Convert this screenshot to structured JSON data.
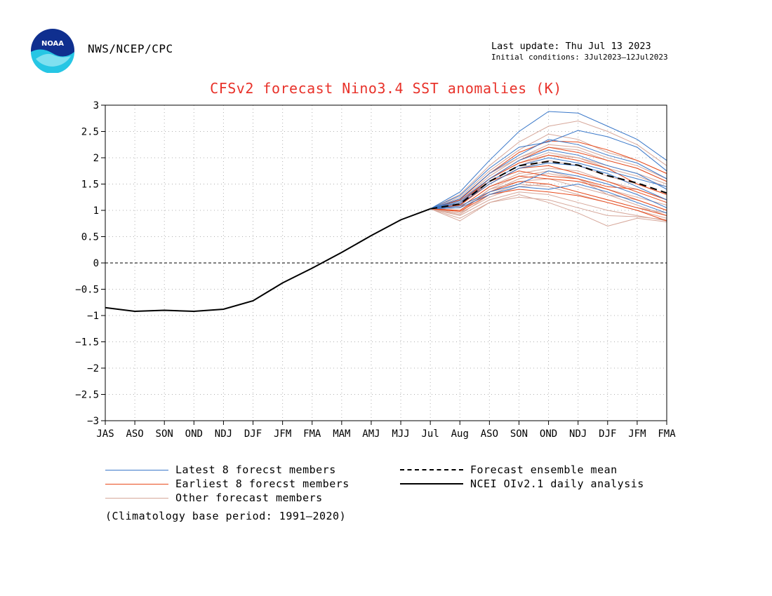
{
  "header": {
    "agency": "NWS/NCEP/CPC",
    "last_update": "Last update: Thu Jul 13 2023",
    "initial_conditions": "Initial conditions: 3Jul2023–12Jul2023",
    "logo_text": "NOAA"
  },
  "colors": {
    "title": "#e8322a",
    "latest": "#3a78c9",
    "earliest": "#e84a1c",
    "other": "#d6a79a",
    "observed": "#000000",
    "mean": "#000000"
  },
  "legend": {
    "latest": "Latest 8 forecst members",
    "earliest": "Earliest 8 forecst members",
    "other": "Other forecast members",
    "mean": "Forecast ensemble mean",
    "observed": "NCEI OIv2.1 daily analysis",
    "climatology": "(Climatology base period: 1991–2020)"
  },
  "chart_data": {
    "type": "line",
    "title": "CFSv2 forecast Nino3.4 SST anomalies (K)",
    "xlabel": "",
    "ylabel": "",
    "categories": [
      "JAS",
      "ASO",
      "SON",
      "OND",
      "NDJ",
      "DJF",
      "JFM",
      "FMA",
      "MAM",
      "AMJ",
      "MJJ",
      "Jul",
      "Aug",
      "ASO",
      "SON",
      "OND",
      "NDJ",
      "DJF",
      "JFM",
      "FMA"
    ],
    "ylim": [
      -3,
      3
    ],
    "yticks": [
      3,
      2.5,
      2,
      1.5,
      1,
      0.5,
      0,
      -0.5,
      -1,
      -1.5,
      -2,
      -2.5,
      -3
    ],
    "grid": true,
    "zero_line": true,
    "observed": {
      "name": "NCEI OIv2.1 daily analysis",
      "x_index": [
        0,
        1,
        2,
        3,
        4,
        5,
        6,
        7,
        8,
        9,
        10,
        11
      ],
      "values": [
        -0.85,
        -0.92,
        -0.9,
        -0.92,
        -0.88,
        -0.72,
        -0.38,
        -0.1,
        0.2,
        0.52,
        0.82,
        1.03
      ]
    },
    "ensemble_mean": {
      "name": "Forecast ensemble mean",
      "x_index": [
        11,
        12,
        13,
        14,
        15,
        16,
        17,
        18,
        19
      ],
      "values": [
        1.03,
        1.12,
        1.55,
        1.85,
        1.93,
        1.86,
        1.66,
        1.52,
        1.33
      ]
    },
    "forecast_members": {
      "x_index": [
        11,
        12,
        13,
        14,
        15,
        16,
        17,
        18,
        19
      ],
      "latest": [
        [
          1.03,
          1.35,
          1.95,
          2.5,
          2.88,
          2.85,
          2.6,
          2.35,
          1.95
        ],
        [
          1.03,
          1.28,
          1.8,
          2.2,
          2.3,
          2.52,
          2.4,
          2.2,
          1.75
        ],
        [
          1.03,
          1.22,
          1.7,
          2.05,
          2.35,
          2.25,
          2.05,
          1.9,
          1.6
        ],
        [
          1.03,
          1.18,
          1.6,
          1.95,
          2.15,
          2.05,
          1.85,
          1.7,
          1.4
        ],
        [
          1.03,
          1.12,
          1.5,
          1.8,
          1.9,
          1.85,
          1.7,
          1.45,
          1.2
        ],
        [
          1.03,
          1.08,
          1.35,
          1.5,
          1.75,
          1.65,
          1.5,
          1.3,
          1.05
        ],
        [
          1.03,
          1.05,
          1.3,
          1.45,
          1.4,
          1.5,
          1.35,
          1.15,
          0.95
        ],
        [
          1.03,
          1.15,
          1.55,
          1.85,
          2.0,
          1.9,
          1.75,
          1.6,
          1.45
        ]
      ],
      "earliest": [
        [
          1.03,
          1.2,
          1.7,
          2.1,
          2.32,
          2.3,
          2.15,
          1.95,
          1.7
        ],
        [
          1.03,
          1.15,
          1.6,
          1.95,
          2.2,
          2.1,
          1.95,
          1.8,
          1.55
        ],
        [
          1.03,
          1.1,
          1.5,
          1.8,
          1.85,
          1.7,
          1.55,
          1.35,
          1.15
        ],
        [
          1.03,
          1.05,
          1.45,
          1.65,
          1.6,
          1.55,
          1.4,
          1.2,
          1.0
        ],
        [
          1.03,
          1.0,
          1.35,
          1.55,
          1.5,
          1.35,
          1.2,
          1.05,
          0.9
        ],
        [
          1.03,
          0.98,
          1.3,
          1.4,
          1.35,
          1.28,
          1.15,
          1.0,
          0.8
        ],
        [
          1.03,
          1.1,
          1.55,
          1.75,
          1.65,
          1.6,
          1.45,
          1.4,
          1.2
        ],
        [
          1.03,
          1.12,
          1.6,
          1.9,
          2.05,
          1.95,
          1.8,
          1.5,
          1.3
        ]
      ],
      "other": [
        [
          1.03,
          1.3,
          1.85,
          2.3,
          2.6,
          2.7,
          2.5,
          2.25,
          1.85
        ],
        [
          1.03,
          1.25,
          1.75,
          2.15,
          2.45,
          2.35,
          2.1,
          1.95,
          1.7
        ],
        [
          1.03,
          1.2,
          1.7,
          2.0,
          2.25,
          2.2,
          2.0,
          1.85,
          1.6
        ],
        [
          1.03,
          1.15,
          1.6,
          1.9,
          2.1,
          2.0,
          1.8,
          1.65,
          1.45
        ],
        [
          1.03,
          1.1,
          1.5,
          1.8,
          1.95,
          1.85,
          1.65,
          1.5,
          1.3
        ],
        [
          1.03,
          1.05,
          1.45,
          1.7,
          1.8,
          1.75,
          1.55,
          1.4,
          1.2
        ],
        [
          1.03,
          1.0,
          1.35,
          1.6,
          1.7,
          1.6,
          1.4,
          1.25,
          1.1
        ],
        [
          1.03,
          0.95,
          1.25,
          1.45,
          1.5,
          1.35,
          1.2,
          1.05,
          0.95
        ],
        [
          1.03,
          0.9,
          1.2,
          1.35,
          1.3,
          1.15,
          1.0,
          0.9,
          0.8
        ],
        [
          1.03,
          0.85,
          1.15,
          1.3,
          1.15,
          0.95,
          0.7,
          0.85,
          0.78
        ],
        [
          1.03,
          0.8,
          1.15,
          1.25,
          1.2,
          1.05,
          0.9,
          0.88,
          0.82
        ],
        [
          1.03,
          0.95,
          1.4,
          1.65,
          1.75,
          1.6,
          1.3,
          1.2,
          1.0
        ],
        [
          1.03,
          1.08,
          1.55,
          1.85,
          2.05,
          2.0,
          1.85,
          1.7,
          1.5
        ],
        [
          1.03,
          1.18,
          1.65,
          2.0,
          2.2,
          2.15,
          1.95,
          1.8,
          1.55
        ],
        [
          1.03,
          1.0,
          1.4,
          1.55,
          1.6,
          1.45,
          1.3,
          1.1,
          0.9
        ],
        [
          1.03,
          0.92,
          1.3,
          1.5,
          1.45,
          1.3,
          1.15,
          1.0,
          0.85
        ]
      ]
    }
  }
}
